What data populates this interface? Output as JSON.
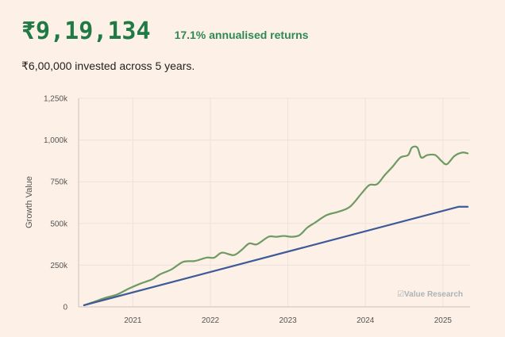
{
  "header": {
    "value": "₹9,19,134",
    "returns": "17.1% annualised returns",
    "invested_text": "₹6,00,000 invested across 5 years."
  },
  "watermark": "☑Value Research",
  "colors": {
    "value_green": "#1f7a45",
    "portfolio_line": "#6e9a64",
    "invested_line": "#3d5a99",
    "background": "#fdf0e6"
  },
  "chart_data": {
    "type": "line",
    "ylabel": "Growth Value",
    "xlabel": "",
    "ylim": [
      0,
      1250000
    ],
    "yticks": [
      0,
      250000,
      500000,
      750000,
      1000000,
      1250000
    ],
    "ytick_labels": [
      "0",
      "250k",
      "500k",
      "750k",
      "1,000k",
      "1,250k"
    ],
    "xlim": [
      2020.3,
      2025.35
    ],
    "xticks": [
      2021,
      2022,
      2023,
      2024,
      2025
    ],
    "xtick_labels": [
      "2021",
      "2022",
      "2023",
      "2024",
      "2025"
    ],
    "grid": true,
    "series": [
      {
        "key": "portfolio",
        "x": [
          2020.37,
          2020.5,
          2020.65,
          2020.8,
          2020.95,
          2021.1,
          2021.25,
          2021.35,
          2021.5,
          2021.65,
          2021.8,
          2021.95,
          2022.05,
          2022.15,
          2022.3,
          2022.4,
          2022.5,
          2022.6,
          2022.75,
          2022.85,
          2022.95,
          2023.05,
          2023.15,
          2023.25,
          2023.35,
          2023.5,
          2023.65,
          2023.8,
          2023.95,
          2024.05,
          2024.15,
          2024.25,
          2024.35,
          2024.45,
          2024.55,
          2024.6,
          2024.67,
          2024.72,
          2024.8,
          2024.9,
          2024.98,
          2025.05,
          2025.15,
          2025.25,
          2025.32
        ],
        "values": [
          10000,
          30000,
          55000,
          75000,
          110000,
          140000,
          165000,
          195000,
          225000,
          270000,
          275000,
          295000,
          295000,
          325000,
          310000,
          340000,
          380000,
          375000,
          420000,
          420000,
          425000,
          420000,
          430000,
          475000,
          505000,
          550000,
          570000,
          600000,
          680000,
          730000,
          735000,
          790000,
          840000,
          895000,
          910000,
          955000,
          955000,
          895000,
          910000,
          910000,
          875000,
          855000,
          905000,
          925000,
          920000
        ]
      },
      {
        "key": "invested",
        "x": [
          2020.37,
          2025.2,
          2025.32
        ],
        "values": [
          10000,
          600000,
          600000
        ]
      }
    ]
  }
}
